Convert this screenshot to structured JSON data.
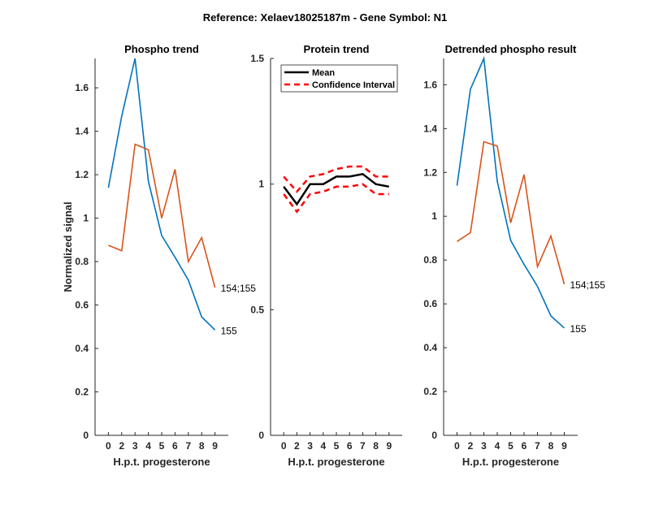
{
  "figure_title": "Reference:  Xelaev18025187m - Gene Symbol:  N1",
  "chart_data": [
    {
      "type": "line",
      "title": "Phospho trend",
      "xlabel": "H.p.t. progesterone",
      "ylabel": "Normalized signal",
      "categories": [
        "0",
        "2",
        "3",
        "4",
        "5",
        "6",
        "7",
        "8",
        "9"
      ],
      "ylim": [
        0,
        1.735
      ],
      "yticks": [
        "0",
        "0.2",
        "0.4",
        "0.6",
        "0.8",
        "1",
        "1.2",
        "1.4",
        "1.6"
      ],
      "grid": false,
      "series": [
        {
          "name": "155",
          "color": "#0072BD",
          "values": [
            1.14,
            1.47,
            1.735,
            1.17,
            0.92,
            0.82,
            0.715,
            0.545,
            0.485
          ]
        },
        {
          "name": "154;155",
          "color": "#D95319",
          "values": [
            0.875,
            0.85,
            1.34,
            1.315,
            1.0,
            1.225,
            0.8,
            0.91,
            0.68
          ]
        }
      ]
    },
    {
      "type": "line",
      "title": "Protein trend",
      "xlabel": "H.p.t. progesterone",
      "ylabel": "",
      "categories": [
        "0",
        "2",
        "3",
        "4",
        "5",
        "6",
        "7",
        "8",
        "9"
      ],
      "ylim": [
        0,
        1.5
      ],
      "yticks": [
        "0",
        "0.5",
        "1",
        "1.5"
      ],
      "grid": false,
      "legend": {
        "position": "top-left",
        "entries": [
          "Mean",
          "Confidence Interval"
        ]
      },
      "series": [
        {
          "name": "Mean",
          "color": "#000000",
          "style": "solid",
          "values": [
            0.99,
            0.92,
            1.0,
            1.0,
            1.03,
            1.03,
            1.04,
            1.0,
            0.99
          ]
        },
        {
          "name": "Confidence Interval",
          "color": "#FF0000",
          "style": "dashed",
          "values": [
            1.03,
            0.97,
            1.03,
            1.04,
            1.06,
            1.07,
            1.07,
            1.03,
            1.03
          ]
        },
        {
          "name": "Confidence Interval",
          "color": "#FF0000",
          "style": "dashed",
          "values": [
            0.96,
            0.89,
            0.96,
            0.97,
            0.99,
            0.99,
            1.0,
            0.96,
            0.96
          ]
        }
      ]
    },
    {
      "type": "line",
      "title": "Detrended phospho result",
      "xlabel": "H.p.t. progesterone",
      "ylabel": "",
      "categories": [
        "0",
        "2",
        "3",
        "4",
        "5",
        "6",
        "7",
        "8",
        "9"
      ],
      "ylim": [
        0,
        1.72
      ],
      "yticks": [
        "0",
        "0.2",
        "0.4",
        "0.6",
        "0.8",
        "1",
        "1.2",
        "1.4",
        "1.6"
      ],
      "grid": false,
      "series": [
        {
          "name": "155",
          "color": "#0072BD",
          "values": [
            1.14,
            1.58,
            1.72,
            1.16,
            0.89,
            0.78,
            0.68,
            0.545,
            0.49
          ]
        },
        {
          "name": "154;155",
          "color": "#D95319",
          "values": [
            0.885,
            0.925,
            1.34,
            1.32,
            0.97,
            1.19,
            0.77,
            0.91,
            0.69
          ]
        }
      ]
    }
  ]
}
